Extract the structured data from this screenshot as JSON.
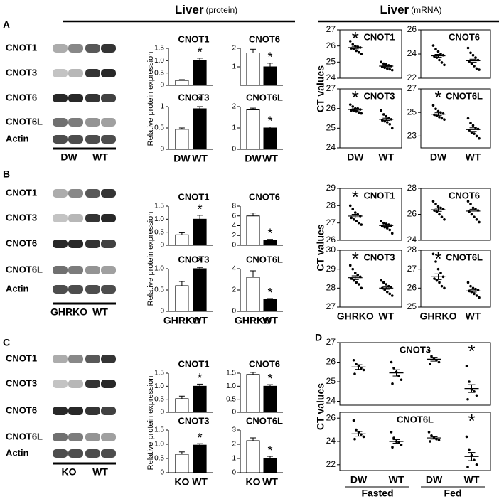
{
  "headers": [
    {
      "title": "Liver",
      "note": "(protein)"
    },
    {
      "title": "Liver",
      "note": "(mRNA)"
    }
  ],
  "panel_letters": [
    "A",
    "B",
    "C",
    "D"
  ],
  "blots": [
    {
      "rows": [
        "CNOT1",
        "CNOT3",
        "CNOT6",
        "CNOT6L",
        "Actin"
      ],
      "groups": [
        "DW",
        "WT"
      ]
    },
    {
      "rows": [
        "CNOT1",
        "CNOT3",
        "CNOT6",
        "CNOT6L",
        "Actin"
      ],
      "groups": [
        "GHRKO",
        "WT"
      ]
    },
    {
      "rows": [
        "CNOT1",
        "CNOT3",
        "CNOT6",
        "CNOT6L",
        "Actin"
      ],
      "groups": [
        "KO",
        "WT"
      ]
    }
  ],
  "chart_data": [
    {
      "type": "bar",
      "title": "CNOT1",
      "ylabel": "Relative protein expression",
      "values": [
        0.2,
        1.0
      ],
      "errors": [
        0.03,
        0.1
      ],
      "colors": [
        "#ffffff",
        "#000000"
      ],
      "ylim": [
        0,
        1.5
      ],
      "yticks": [
        0,
        0.5,
        {
          "value": 1,
          "label": "1.0"
        },
        1.5
      ],
      "annotations": [
        {
          "text": "*",
          "index": 1
        }
      ]
    },
    {
      "type": "bar",
      "title": "CNOT6",
      "values": [
        1.75,
        1.0
      ],
      "errors": [
        0.2,
        0.2
      ],
      "colors": [
        "#ffffff",
        "#000000"
      ],
      "ylim": [
        0,
        2
      ],
      "yticks": [
        1,
        2
      ],
      "annotations": [
        {
          "text": "*",
          "index": 1
        }
      ]
    },
    {
      "type": "bar",
      "title": "CNOT3",
      "categories": [
        "DW",
        "WT"
      ],
      "values": [
        0.47,
        0.95
      ],
      "errors": [
        0.03,
        0.05
      ],
      "colors": [
        "#ffffff",
        "#000000"
      ],
      "ylim": [
        0,
        1
      ],
      "yticks": [
        0,
        0.5,
        1
      ],
      "annotations": [
        {
          "text": "*",
          "index": 1
        }
      ]
    },
    {
      "type": "bar",
      "title": "CNOT6L",
      "categories": [
        "DW",
        "WT"
      ],
      "values": [
        1.85,
        1.0
      ],
      "errors": [
        0.08,
        0.05
      ],
      "colors": [
        "#ffffff",
        "#000000"
      ],
      "ylim": [
        0,
        2
      ],
      "yticks": [
        0,
        1,
        2
      ],
      "annotations": [
        {
          "text": "*",
          "index": 1
        }
      ]
    },
    {
      "type": "strip",
      "title": "CNOT1",
      "ylabel": "CT values",
      "points": [
        [
          26.3,
          26.1,
          26.0,
          25.95,
          25.9,
          25.85,
          25.8,
          25.7,
          25.6,
          25.5
        ],
        [
          25.0,
          24.9,
          24.85,
          24.8,
          24.75,
          24.7,
          24.65,
          24.6,
          24.55,
          24.5
        ]
      ],
      "means": [
        25.9,
        24.75
      ],
      "errors": [
        0.08,
        0.05
      ],
      "ylim": [
        24,
        27
      ],
      "yticks": [
        24,
        25,
        26,
        27
      ],
      "annotations": [
        {
          "text": "*",
          "index": 0
        }
      ]
    },
    {
      "type": "strip",
      "title": "CNOT6",
      "points": [
        [
          24.7,
          24.4,
          24.2,
          24.0,
          23.9,
          23.8,
          23.7,
          23.5,
          23.3,
          23.1
        ],
        [
          24.5,
          24.1,
          23.9,
          23.7,
          23.5,
          23.4,
          23.2,
          23.0,
          22.8,
          22.7
        ]
      ],
      "means": [
        23.85,
        23.45
      ],
      "errors": [
        0.12,
        0.12
      ],
      "ylim": [
        22,
        26
      ],
      "yticks": [
        22,
        24,
        26
      ]
    },
    {
      "type": "strip",
      "title": "CNOT3",
      "categories": [
        "DW",
        "WT"
      ],
      "points": [
        [
          26.2,
          26.1,
          26.0,
          26.0,
          25.95,
          25.9,
          25.9,
          25.85,
          25.8,
          25.75
        ],
        [
          25.9,
          25.7,
          25.6,
          25.5,
          25.45,
          25.4,
          25.35,
          25.3,
          25.2,
          25.0
        ]
      ],
      "means": [
        25.95,
        25.45
      ],
      "errors": [
        0.04,
        0.06
      ],
      "ylim": [
        24,
        27
      ],
      "yticks": [
        24,
        25,
        26,
        27
      ],
      "annotations": [
        {
          "text": "*",
          "index": 0
        }
      ]
    },
    {
      "type": "strip",
      "title": "CNOT6L",
      "categories": [
        "DW",
        "WT"
      ],
      "points": [
        [
          25.6,
          25.3,
          25.1,
          25.0,
          24.9,
          24.8,
          24.7,
          24.6,
          24.5,
          24.4
        ],
        [
          24.5,
          24.1,
          23.9,
          23.7,
          23.6,
          23.5,
          23.3,
          23.2,
          23.0,
          22.8
        ]
      ],
      "means": [
        24.85,
        23.55
      ],
      "errors": [
        0.12,
        0.15
      ],
      "ylim": [
        22,
        27
      ],
      "yticks": [
        23,
        25,
        27
      ],
      "annotations": [
        {
          "text": "*",
          "index": 0
        }
      ]
    },
    {
      "type": "bar",
      "title": "CNOT1",
      "ylabel": "Relative protein expression",
      "values": [
        0.4,
        1.0
      ],
      "errors": [
        0.08,
        0.15
      ],
      "colors": [
        "#ffffff",
        "#000000"
      ],
      "ylim": [
        0,
        1.5
      ],
      "yticks": [
        0,
        0.5,
        {
          "value": 1,
          "label": "1.0"
        },
        1.5
      ],
      "annotations": [
        {
          "text": "*",
          "index": 1
        }
      ]
    },
    {
      "type": "bar",
      "title": "CNOT6",
      "values": [
        6,
        1
      ],
      "errors": [
        0.6,
        0.2
      ],
      "colors": [
        "#ffffff",
        "#000000"
      ],
      "ylim": [
        0,
        8
      ],
      "yticks": [
        0,
        2,
        4,
        6,
        8
      ],
      "annotations": [
        {
          "text": "*",
          "index": 1
        }
      ]
    },
    {
      "type": "bar",
      "title": "CNOT3",
      "categories": [
        "GHRKO",
        "WT"
      ],
      "values": [
        0.6,
        1.0
      ],
      "errors": [
        0.1,
        0.03
      ],
      "colors": [
        "#ffffff",
        "#000000"
      ],
      "ylim": [
        0,
        1
      ],
      "yticks": [
        0,
        0.5,
        {
          "value": 1,
          "label": "1.0"
        }
      ],
      "annotations": [
        {
          "text": "*",
          "index": 1
        }
      ]
    },
    {
      "type": "bar",
      "title": "CNOT6L",
      "categories": [
        "GHRKO",
        "WT"
      ],
      "values": [
        3.2,
        1.1
      ],
      "errors": [
        0.6,
        0.1
      ],
      "colors": [
        "#ffffff",
        "#000000"
      ],
      "ylim": [
        0,
        4
      ],
      "yticks": [
        0,
        2,
        4
      ],
      "annotations": [
        {
          "text": "*",
          "index": 1
        }
      ]
    },
    {
      "type": "strip",
      "title": "CNOT1",
      "ylabel": "CT values",
      "points": [
        [
          28.0,
          27.8,
          27.6,
          27.5,
          27.4,
          27.3,
          27.2,
          27.1,
          27.0,
          26.9
        ],
        [
          27.1,
          27.0,
          26.95,
          26.9,
          26.85,
          26.8,
          26.75,
          26.7,
          26.6,
          26.4
        ]
      ],
      "means": [
        27.4,
        26.85
      ],
      "errors": [
        0.1,
        0.05
      ],
      "ylim": [
        26,
        29
      ],
      "yticks": [
        26,
        27,
        28,
        29
      ],
      "annotations": [
        {
          "text": "*",
          "index": 0
        }
      ]
    },
    {
      "type": "strip",
      "title": "CNOT6",
      "points": [
        [
          27.0,
          26.8,
          26.6,
          26.5,
          26.4,
          26.3,
          26.2,
          26.0,
          25.8,
          25.6
        ],
        [
          27.0,
          26.8,
          26.5,
          26.4,
          26.3,
          26.2,
          26.0,
          25.8,
          25.6,
          25.4
        ]
      ],
      "means": [
        26.35,
        26.25
      ],
      "errors": [
        0.12,
        0.14
      ],
      "ylim": [
        24,
        28
      ],
      "yticks": [
        24,
        26,
        28
      ]
    },
    {
      "type": "strip",
      "title": "CNOT3",
      "categories": [
        "GHRKO",
        "WT"
      ],
      "points": [
        [
          29.2,
          29.0,
          28.8,
          28.7,
          28.6,
          28.5,
          28.4,
          28.3,
          28.2,
          28.0
        ],
        [
          28.4,
          28.3,
          28.2,
          28.1,
          28.05,
          28.0,
          27.9,
          27.8,
          27.7,
          27.6
        ]
      ],
      "means": [
        28.55,
        28.0
      ],
      "errors": [
        0.1,
        0.06
      ],
      "ylim": [
        27,
        30
      ],
      "yticks": [
        27,
        28,
        29,
        30
      ],
      "annotations": [
        {
          "text": "*",
          "index": 0
        }
      ]
    },
    {
      "type": "strip",
      "title": "CNOT6L",
      "categories": [
        "GHRKO",
        "WT"
      ],
      "points": [
        [
          27.8,
          27.4,
          27.0,
          26.8,
          26.6,
          26.5,
          26.4,
          26.3,
          26.1,
          26.0
        ],
        [
          26.3,
          26.1,
          26.0,
          25.95,
          25.9,
          25.85,
          25.8,
          25.7,
          25.6,
          25.5
        ]
      ],
      "means": [
        26.6,
        25.85
      ],
      "errors": [
        0.15,
        0.06
      ],
      "ylim": [
        25,
        28
      ],
      "yticks": [
        25,
        26,
        27,
        28
      ],
      "annotations": [
        {
          "text": "*",
          "index": 0
        }
      ]
    },
    {
      "type": "bar",
      "title": "CNOT1",
      "ylabel": "Relative protein expression",
      "values": [
        0.52,
        1.0
      ],
      "errors": [
        0.1,
        0.08
      ],
      "colors": [
        "#ffffff",
        "#000000"
      ],
      "ylim": [
        0,
        1.5
      ],
      "yticks": [
        0,
        0.5,
        {
          "value": 1,
          "label": "1.0"
        },
        1.5
      ],
      "annotations": [
        {
          "text": "*",
          "index": 1
        }
      ]
    },
    {
      "type": "bar",
      "title": "CNOT6",
      "values": [
        1.45,
        1.0
      ],
      "errors": [
        0.08,
        0.06
      ],
      "colors": [
        "#ffffff",
        "#000000"
      ],
      "ylim": [
        0,
        1.5
      ],
      "yticks": [
        0,
        0.5,
        {
          "value": 1,
          "label": "1.0"
        },
        1.5
      ],
      "annotations": [
        {
          "text": "*",
          "index": 1
        }
      ]
    },
    {
      "type": "bar",
      "title": "CNOT3",
      "categories": [
        "KO",
        "WT"
      ],
      "values": [
        0.65,
        0.97
      ],
      "errors": [
        0.08,
        0.05
      ],
      "colors": [
        "#ffffff",
        "#000000"
      ],
      "ylim": [
        0,
        1.5
      ],
      "yticks": [
        0,
        0.5,
        {
          "value": 1,
          "label": "1.0"
        },
        1.5
      ],
      "annotations": [
        {
          "text": "*",
          "index": 1
        }
      ]
    },
    {
      "type": "bar",
      "title": "CNOT6L",
      "categories": [
        "KO",
        "WT"
      ],
      "values": [
        2.25,
        1.0
      ],
      "errors": [
        0.2,
        0.15
      ],
      "colors": [
        "#ffffff",
        "#000000"
      ],
      "ylim": [
        0,
        3
      ],
      "yticks": [
        0,
        1,
        2,
        3
      ],
      "annotations": [
        {
          "text": "*",
          "index": 1
        }
      ]
    },
    {
      "type": "strip",
      "title": "CNOT3",
      "ylabel": "CT values",
      "points": [
        [
          26.1,
          25.9,
          25.8,
          25.7,
          25.6,
          25.4
        ],
        [
          26.0,
          25.7,
          25.5,
          25.3,
          25.1,
          24.9
        ],
        [
          26.6,
          26.3,
          26.2,
          26.1,
          26.0,
          25.9
        ],
        [
          25.8,
          25.0,
          24.6,
          24.5,
          24.3,
          24.1
        ]
      ],
      "means": [
        25.75,
        25.45,
        26.15,
        24.65
      ],
      "errors": [
        0.12,
        0.16,
        0.1,
        0.2
      ],
      "ylim": [
        23.8,
        27
      ],
      "yticks": [
        24,
        25,
        26,
        27
      ],
      "annotations": [
        {
          "text": "*",
          "index": 3
        }
      ]
    },
    {
      "type": "strip",
      "title": "CNOT6L",
      "categories": [
        "DW",
        "WT",
        "DW",
        "WT"
      ],
      "group_labels": [
        "Fasted",
        "Fed"
      ],
      "points": [
        [
          25.8,
          25.0,
          24.8,
          24.6,
          24.4,
          24.2
        ],
        [
          24.8,
          24.3,
          24.0,
          23.9,
          23.7,
          23.5
        ],
        [
          24.8,
          24.5,
          24.3,
          24.2,
          24.1,
          24.0
        ],
        [
          24.4,
          23.3,
          22.8,
          22.4,
          22.0,
          21.8
        ]
      ],
      "means": [
        24.65,
        24.0,
        24.3,
        22.7
      ],
      "errors": [
        0.2,
        0.15,
        0.1,
        0.35
      ],
      "ylim": [
        21.5,
        26.5
      ],
      "yticks": [
        22,
        24,
        26
      ],
      "annotations": [
        {
          "text": "*",
          "index": 3
        }
      ]
    }
  ]
}
